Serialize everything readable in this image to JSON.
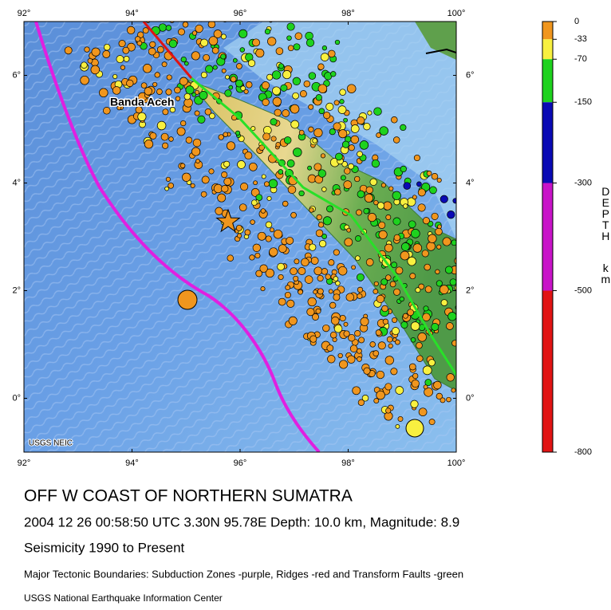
{
  "map": {
    "lon_range": [
      92,
      100
    ],
    "lat_range": [
      -1,
      7
    ],
    "lon_ticks": [
      {
        "value": 92,
        "label": "92°"
      },
      {
        "value": 94,
        "label": "94°"
      },
      {
        "value": 96,
        "label": "96°"
      },
      {
        "value": 98,
        "label": "98°"
      },
      {
        "value": 100,
        "label": "100°"
      }
    ],
    "lat_ticks": [
      {
        "value": 0,
        "label": "0°"
      },
      {
        "value": 2,
        "label": "2°"
      },
      {
        "value": 4,
        "label": "4°"
      },
      {
        "value": 6,
        "label": "6°"
      }
    ],
    "place_label": "Banda Aceh",
    "credit": "USGS NEIC"
  },
  "depth_scale": {
    "title": "DEPTH",
    "unit": "km",
    "range": [
      0,
      -800
    ],
    "ticks": [
      0,
      -33,
      -70,
      -150,
      -300,
      -500,
      -800
    ],
    "colors": [
      "#f0961e",
      "#f8f040",
      "#1ed21e",
      "#0a0ab4",
      "#c814c8",
      "#e11414"
    ]
  },
  "caption": {
    "title": "OFF W COAST OF NORTHERN SUMATRA",
    "event": "2004 12 26 00:58:50 UTC 3.30N 95.78E Depth: 10.0 km, Magnitude: 8.9",
    "period": "Seismicity 1990 to Present",
    "boundaries": "Major Tectonic Boundaries: Subduction Zones -purple, Ridges -red and Transform Faults -green",
    "source": "USGS National Earthquake Information Center"
  }
}
